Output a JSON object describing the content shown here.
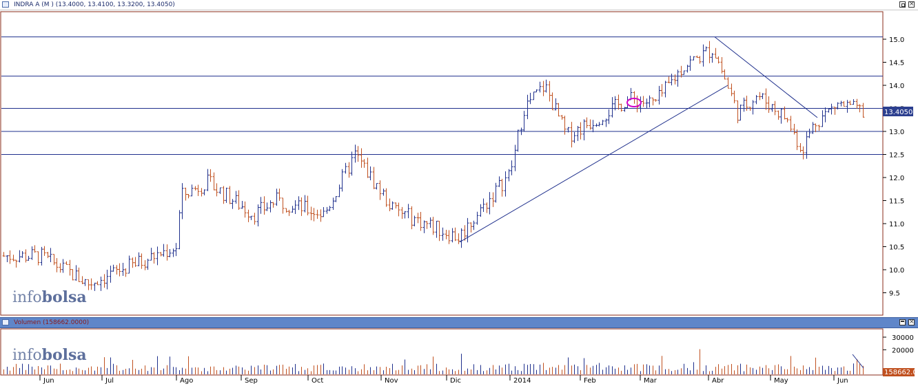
{
  "price_panel": {
    "title": "INDRA A (M ) (13.4000, 13.4100, 13.3200, 13.4050)",
    "last_price_label": "13.4050",
    "watermark_prefix": "info",
    "watermark_suffix": "bolsa"
  },
  "volume_panel": {
    "title": "Volumen (158662.0000)",
    "last_volume_label": "158662.00",
    "watermark_prefix": "info",
    "watermark_suffix": "bolsa"
  },
  "colors": {
    "up_bar": "#1e2f8c",
    "down_bar": "#c0501f",
    "line": "#1e2f8c",
    "highlight_ellipse": "#d100c8",
    "last_label_bg": "#2c3f8f",
    "volume_label_bg": "#c0501f",
    "panel_border": "#8a2b18"
  },
  "icons": [
    "window-icon",
    "minimize-icon",
    "restore-icon",
    "close-icon"
  ],
  "chart_data": [
    {
      "type": "ohlc",
      "yticks": [
        "15.0",
        "14.5",
        "14.0",
        "13.5",
        "13.0",
        "12.5",
        "12.0",
        "11.5",
        "11.0",
        "10.5",
        "10.0",
        "9.5"
      ],
      "ylim": [
        9.0,
        15.6
      ],
      "x_labels": [
        "Jun",
        "Jul",
        "Ago",
        "Sep",
        "Oct",
        "Nov",
        "Dic",
        "2014",
        "Feb",
        "Mar",
        "Abr",
        "May",
        "Jun"
      ],
      "horizontal_lines": [
        15.05,
        14.2,
        13.5,
        13.0,
        12.5
      ],
      "trendlines": [
        {
          "from": {
            "period": "Dic",
            "value": 10.6
          },
          "to": {
            "period": "Abr",
            "value": 14.0
          }
        },
        {
          "from": {
            "period": "Abr",
            "value": 15.05
          },
          "to": {
            "period": "May",
            "value": 13.3
          }
        }
      ],
      "monthly_path": [
        {
          "period": "May (start)",
          "value": 10.3
        },
        {
          "period": "Jun",
          "value": 10.3
        },
        {
          "period": "Jul",
          "value": 9.7
        },
        {
          "period": "Jul (end)",
          "value": 10.5
        },
        {
          "period": "Ago",
          "value": 11.6
        },
        {
          "period": "Ago (mid)",
          "value": 11.9
        },
        {
          "period": "Sep",
          "value": 11.2
        },
        {
          "period": "Sep (mid)",
          "value": 11.5
        },
        {
          "period": "Oct",
          "value": 11.2
        },
        {
          "period": "Oct (late)",
          "value": 12.5
        },
        {
          "period": "Nov",
          "value": 11.3
        },
        {
          "period": "Dic",
          "value": 10.7
        },
        {
          "period": "Dic (late)",
          "value": 12.1
        },
        {
          "period": "2014",
          "value": 13.5
        },
        {
          "period": "2014 (mid)",
          "value": 14.0
        },
        {
          "period": "Feb",
          "value": 12.9
        },
        {
          "period": "Feb (late)",
          "value": 13.7
        },
        {
          "period": "Mar",
          "value": 13.6
        },
        {
          "period": "Mar (late)",
          "value": 14.4
        },
        {
          "period": "Abr",
          "value": 14.8
        },
        {
          "period": "Abr (mid)",
          "value": 13.4
        },
        {
          "period": "Abr (late)",
          "value": 13.8
        },
        {
          "period": "May",
          "value": 13.3
        },
        {
          "period": "May (mid)",
          "value": 12.6
        },
        {
          "period": "May (late)",
          "value": 13.2
        },
        {
          "period": "Jun",
          "value": 13.6
        },
        {
          "period": "Jun (end)",
          "value": 13.4
        }
      ]
    },
    {
      "type": "bar",
      "yticks": [
        "30000",
        "20000"
      ],
      "ylim": [
        0,
        36000
      ]
    }
  ]
}
